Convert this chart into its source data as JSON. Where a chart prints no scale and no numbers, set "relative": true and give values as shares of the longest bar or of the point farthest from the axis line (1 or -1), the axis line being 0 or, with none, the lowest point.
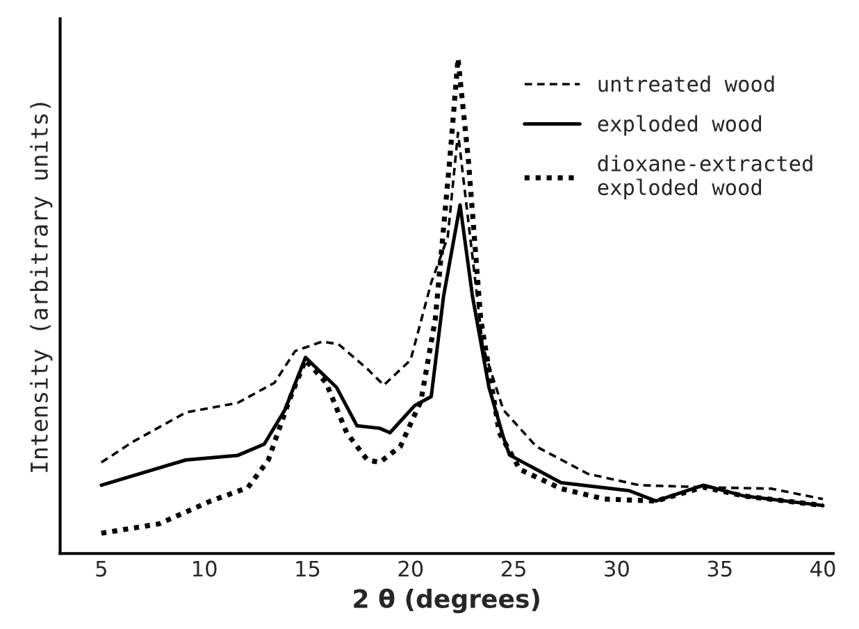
{
  "chart_data": {
    "type": "line",
    "relative": true,
    "xlabel": "2 θ (degrees)",
    "ylabel": "Intensity (arbitrary units)",
    "xlim": [
      3,
      40.5
    ],
    "xticks": [
      5,
      10,
      15,
      20,
      25,
      30,
      35,
      40
    ],
    "grid": false,
    "legend": "top right",
    "series": [
      {
        "name": "untreated wood",
        "color": "#000000",
        "line_style": "dashed",
        "x": [
          5,
          6.5,
          9.1,
          11.6,
          13.4,
          14.4,
          15.7,
          16.5,
          17.9,
          18.7,
          20,
          21,
          21.8,
          22.3,
          23,
          23.5,
          24.5,
          26.1,
          28.6,
          31.1,
          34.2,
          37.5,
          40
        ],
        "values": [
          0.184,
          0.225,
          0.285,
          0.304,
          0.345,
          0.409,
          0.428,
          0.423,
          0.373,
          0.34,
          0.391,
          0.547,
          0.639,
          0.85,
          0.6,
          0.419,
          0.29,
          0.216,
          0.161,
          0.138,
          0.134,
          0.131,
          0.11
        ]
      },
      {
        "name": "exploded wood",
        "color": "#000000",
        "line_style": "solid",
        "x": [
          5,
          9.1,
          11.6,
          12.9,
          13.9,
          14.9,
          16.4,
          17.4,
          18.5,
          19,
          20.2,
          21,
          21.6,
          22.4,
          23,
          23.8,
          24.5,
          24.8,
          27.3,
          30.6,
          31.9,
          34.2,
          36.2,
          40
        ],
        "values": [
          0.138,
          0.189,
          0.198,
          0.221,
          0.29,
          0.396,
          0.336,
          0.258,
          0.253,
          0.244,
          0.299,
          0.317,
          0.52,
          0.704,
          0.52,
          0.336,
          0.235,
          0.199,
          0.143,
          0.127,
          0.106,
          0.138,
          0.116,
          0.097
        ]
      },
      {
        "name": "dioxane-extracted\nexploded wood",
        "color": "#000000",
        "line_style": "dotted",
        "x": [
          5,
          7.8,
          10.3,
          12.1,
          13.1,
          14.1,
          14.9,
          15.9,
          16.9,
          17.9,
          18.5,
          19.5,
          20.5,
          21.2,
          21.9,
          22.3,
          22.8,
          23.4,
          24.3,
          25.3,
          27.3,
          29.4,
          31.9,
          34.2,
          36.2,
          40
        ],
        "values": [
          0.041,
          0.06,
          0.106,
          0.133,
          0.189,
          0.308,
          0.391,
          0.345,
          0.244,
          0.189,
          0.184,
          0.216,
          0.308,
          0.474,
          0.796,
          1.0,
          0.796,
          0.474,
          0.244,
          0.17,
          0.131,
          0.11,
          0.106,
          0.134,
          0.116,
          0.097
        ]
      }
    ]
  }
}
